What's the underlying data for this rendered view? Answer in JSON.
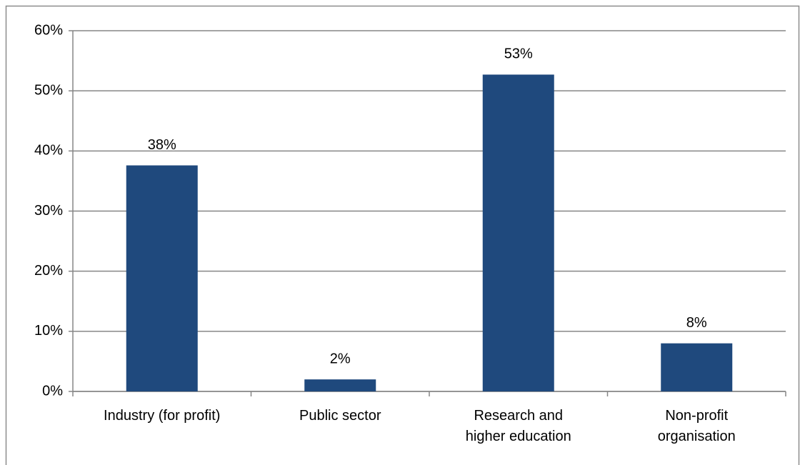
{
  "chart_data": {
    "type": "bar",
    "categories": [
      "Industry (for profit)",
      "Public sector",
      "Research and\nhigher education",
      "Non-profit\norganisation"
    ],
    "values": [
      37.6,
      2,
      52.7,
      8
    ],
    "value_labels": [
      "38%",
      "2%",
      "53%",
      "8%"
    ],
    "color": "#1f497d",
    "ylim": [
      0,
      60
    ],
    "yticks": [
      {
        "value": 0,
        "label": "0%"
      },
      {
        "value": 10,
        "label": "10%"
      },
      {
        "value": 20,
        "label": "20%"
      },
      {
        "value": 30,
        "label": "30%"
      },
      {
        "value": 40,
        "label": "40%"
      },
      {
        "value": 50,
        "label": "50%"
      },
      {
        "value": 60,
        "label": "60%"
      }
    ],
    "grid": true
  }
}
